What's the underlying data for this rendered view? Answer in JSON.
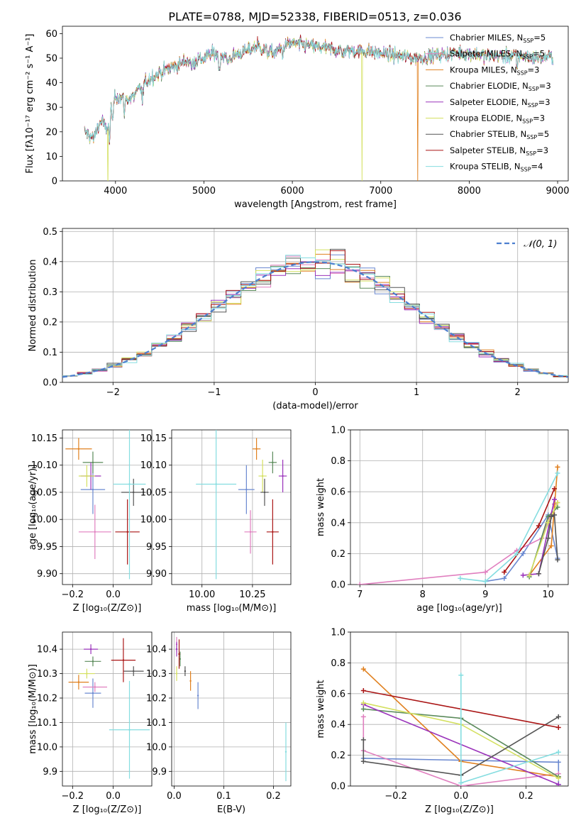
{
  "figure_title": "PLATE=0788, MJD=52338, FIBERID=0513, z=0.036",
  "series_colors": [
    "#6a88d0",
    "#e07fbf",
    "#e0801f",
    "#5a8a5a",
    "#9a33bb",
    "#d4e060",
    "#555555",
    "#aa1515",
    "#85dde0"
  ],
  "legend": [
    {
      "label": "Chabrier MILES, N",
      "sub": "SSP",
      "eq": "=5",
      "color": "#6a88d0"
    },
    {
      "label": "Salpeter MILES, N",
      "sub": "SSP",
      "eq": "=5",
      "color": "#e07fbf"
    },
    {
      "label": "Kroupa MILES, N",
      "sub": "SSP",
      "eq": "=3",
      "color": "#e0801f"
    },
    {
      "label": "Chabrier ELODIE, N",
      "sub": "SSP",
      "eq": "=3",
      "color": "#5a8a5a"
    },
    {
      "label": "Salpeter ELODIE, N",
      "sub": "SSP",
      "eq": "=3",
      "color": "#9a33bb"
    },
    {
      "label": "Kroupa ELODIE, N",
      "sub": "SSP",
      "eq": "=3",
      "color": "#d4e060"
    },
    {
      "label": "Chabrier STELIB, N",
      "sub": "SSP",
      "eq": "=5",
      "color": "#555555"
    },
    {
      "label": "Salpeter STELIB, N",
      "sub": "SSP",
      "eq": "=3",
      "color": "#aa1515"
    },
    {
      "label": "Kroupa STELIB, N",
      "sub": "SSP",
      "eq": "=4",
      "color": "#85dde0"
    }
  ],
  "chart_data": [
    {
      "id": "spectrum",
      "type": "line",
      "xlabel": "wavelength [Angstrom, rest frame]",
      "ylabel": "Flux [fλ10⁻¹⁷ erg cm⁻² s⁻¹ A⁻¹]",
      "xlim": [
        3400,
        9120
      ],
      "ylim": [
        0,
        63
      ],
      "xticks": [
        4000,
        5000,
        6000,
        7000,
        8000,
        9000
      ],
      "yticks": [
        0,
        10,
        20,
        30,
        40,
        50,
        60
      ],
      "grid": false,
      "continuum": {
        "x": [
          3650,
          3700,
          3750,
          3800,
          3850,
          3900,
          3950,
          4000,
          4100,
          4200,
          4300,
          4400,
          4500,
          4600,
          4700,
          4800,
          4900,
          5000,
          5100,
          5200,
          5300,
          5400,
          5500,
          5600,
          5700,
          5800,
          5900,
          6000,
          6200,
          6400,
          6600,
          6800,
          7000,
          7200,
          7400,
          7600,
          7800,
          8000,
          8200,
          8400,
          8600,
          8800,
          8950
        ],
        "y": [
          20,
          19,
          17,
          22,
          25,
          20,
          30,
          35,
          33,
          34,
          39,
          42,
          44,
          46,
          47,
          49,
          49,
          50,
          52,
          51,
          50,
          52,
          53,
          55,
          53,
          52,
          55,
          56,
          55,
          54,
          53,
          53,
          52,
          51,
          50,
          51,
          52,
          52,
          51,
          51,
          51,
          50,
          51
        ]
      },
      "absorption_features": [
        [
          3934,
          12
        ],
        [
          3969,
          10
        ],
        [
          4101,
          5
        ],
        [
          4304,
          8
        ],
        [
          4861,
          4
        ],
        [
          5175,
          8
        ],
        [
          5270,
          3
        ],
        [
          5893,
          4
        ],
        [
          6563,
          3
        ],
        [
          8542,
          6
        ]
      ],
      "dropouts": [
        {
          "series": 5,
          "x": 3915
        },
        {
          "series": 5,
          "x": 6790
        },
        {
          "series": 2,
          "x": 7420
        }
      ]
    },
    {
      "id": "residuals",
      "type": "histogram",
      "xlabel": "(data-model)/error",
      "ylabel": "Normed distribution",
      "xlim": [
        -2.5,
        2.5
      ],
      "ylim": [
        0,
        0.51
      ],
      "xticks": [
        -2,
        -1,
        0,
        1,
        2
      ],
      "yticks": [
        0,
        0.1,
        0.2,
        0.3,
        0.4,
        0.5
      ],
      "grid": true,
      "bins": 34,
      "reference_label": "𝒩(0, 1)",
      "reference_color": "#4c7fcf"
    },
    {
      "id": "age_vs_Z",
      "type": "scatter",
      "xlabel": "Z [log₁₀(Z/Z⊙)]",
      "ylabel": "age  [log₁₀(age/yr)]",
      "xlim": [
        -0.25,
        0.19
      ],
      "ylim": [
        9.88,
        10.165
      ],
      "xticks": [
        -0.2,
        0.0
      ],
      "yticks": [
        9.9,
        9.95,
        10.0,
        10.05,
        10.1,
        10.15
      ],
      "grid": true,
      "points": [
        {
          "c": 0,
          "x": -0.1,
          "y": 10.055,
          "ex": 0.06,
          "ey": 0.045
        },
        {
          "c": 1,
          "x": -0.09,
          "y": 9.977,
          "ex": 0.08,
          "ey": 0.05
        },
        {
          "c": 2,
          "x": -0.17,
          "y": 10.13,
          "ex": 0.065,
          "ey": 0.02
        },
        {
          "c": 3,
          "x": -0.1,
          "y": 10.105,
          "ex": 0.05,
          "ey": 0.02
        },
        {
          "c": 4,
          "x": -0.11,
          "y": 10.08,
          "ex": 0.05,
          "ey": 0.025
        },
        {
          "c": 5,
          "x": -0.13,
          "y": 10.08,
          "ex": 0.04,
          "ey": 0.02
        },
        {
          "c": 6,
          "x": 0.1,
          "y": 10.05,
          "ex": 0.06,
          "ey": 0.025
        },
        {
          "c": 7,
          "x": 0.07,
          "y": 9.977,
          "ex": 0.06,
          "ey": 0.06
        },
        {
          "c": 8,
          "x": 0.08,
          "y": 10.065,
          "ex": 0.08,
          "ey": 0.175
        }
      ]
    },
    {
      "id": "age_vs_mass",
      "type": "scatter",
      "xlabel": "mass [log₁₀(M/M⊙)]",
      "ylabel": "",
      "xlim": [
        9.85,
        10.44
      ],
      "ylim": [
        9.88,
        10.165
      ],
      "xticks": [
        10.0,
        10.25
      ],
      "yticks": [
        9.9,
        9.95,
        10.0,
        10.05,
        10.1,
        10.15
      ],
      "grid": true,
      "points": [
        {
          "c": 0,
          "x": 10.22,
          "y": 10.055,
          "ex": 0.04,
          "ey": 0.045
        },
        {
          "c": 1,
          "x": 10.24,
          "y": 9.977,
          "ex": 0.03,
          "ey": 0.04
        },
        {
          "c": 2,
          "x": 10.27,
          "y": 10.13,
          "ex": 0.02,
          "ey": 0.02
        },
        {
          "c": 3,
          "x": 10.35,
          "y": 10.105,
          "ex": 0.02,
          "ey": 0.02
        },
        {
          "c": 4,
          "x": 10.4,
          "y": 10.08,
          "ex": 0.02,
          "ey": 0.03
        },
        {
          "c": 5,
          "x": 10.3,
          "y": 10.08,
          "ex": 0.02,
          "ey": 0.03
        },
        {
          "c": 6,
          "x": 10.31,
          "y": 10.05,
          "ex": 0.02,
          "ey": 0.025
        },
        {
          "c": 7,
          "x": 10.35,
          "y": 9.977,
          "ex": 0.03,
          "ey": 0.06
        },
        {
          "c": 8,
          "x": 10.07,
          "y": 10.065,
          "ex": 0.1,
          "ey": 0.175
        }
      ]
    },
    {
      "id": "mass_weight_vs_age",
      "type": "line",
      "xlabel": "age  [log₁₀(age/yr)]",
      "ylabel": "mass weight",
      "xlim": [
        6.85,
        10.32
      ],
      "ylim": [
        0,
        1
      ],
      "xticks": [
        7,
        8,
        9,
        10
      ],
      "yticks": [
        0,
        0.2,
        0.4,
        0.6,
        0.8,
        1.0
      ],
      "grid": true,
      "series": [
        {
          "c": 0,
          "x": [
            9.0,
            9.3,
            9.6,
            10.0,
            10.15
          ],
          "y": [
            0.02,
            0.04,
            0.2,
            0.45,
            0.17
          ]
        },
        {
          "c": 1,
          "x": [
            7.0,
            9.0,
            9.5,
            9.9,
            10.1,
            10.15
          ],
          "y": [
            0.0,
            0.08,
            0.22,
            0.3,
            0.52,
            0.53
          ]
        },
        {
          "c": 2,
          "x": [
            9.7,
            10.05,
            10.15
          ],
          "y": [
            0.06,
            0.25,
            0.76
          ]
        },
        {
          "c": 3,
          "x": [
            9.7,
            10.0,
            10.15
          ],
          "y": [
            0.05,
            0.44,
            0.5
          ]
        },
        {
          "c": 4,
          "x": [
            9.6,
            9.85,
            10.1
          ],
          "y": [
            0.06,
            0.07,
            0.55
          ]
        },
        {
          "c": 5,
          "x": [
            9.7,
            10.0,
            10.15
          ],
          "y": [
            0.06,
            0.4,
            0.53
          ]
        },
        {
          "c": 6,
          "x": [
            9.85,
            10.0,
            10.05,
            10.1,
            10.15
          ],
          "y": [
            0.07,
            0.3,
            0.44,
            0.45,
            0.16
          ]
        },
        {
          "c": 7,
          "x": [
            9.3,
            9.85,
            10.1
          ],
          "y": [
            0.08,
            0.38,
            0.62
          ]
        },
        {
          "c": 8,
          "x": [
            8.6,
            9.0,
            9.5,
            10.15
          ],
          "y": [
            0.04,
            0.02,
            0.2,
            0.72
          ]
        }
      ]
    },
    {
      "id": "mass_vs_Z",
      "type": "scatter",
      "xlabel": "Z [log₁₀(Z/Z⊙)]",
      "ylabel": "mass [log₁₀(M/M⊙)]",
      "xlim": [
        -0.25,
        0.19
      ],
      "ylim": [
        9.84,
        10.47
      ],
      "xticks": [
        -0.2,
        0.0
      ],
      "yticks": [
        9.9,
        10.0,
        10.1,
        10.2,
        10.3,
        10.4
      ],
      "grid": true,
      "points": [
        {
          "c": 0,
          "x": -0.1,
          "y": 10.22,
          "ex": 0.04,
          "ey": 0.06
        },
        {
          "c": 1,
          "x": -0.09,
          "y": 10.245,
          "ex": 0.06,
          "ey": 0.02
        },
        {
          "c": 2,
          "x": -0.17,
          "y": 10.265,
          "ex": 0.05,
          "ey": 0.03
        },
        {
          "c": 3,
          "x": -0.1,
          "y": 10.35,
          "ex": 0.04,
          "ey": 0.02
        },
        {
          "c": 4,
          "x": -0.11,
          "y": 10.4,
          "ex": 0.035,
          "ey": 0.02
        },
        {
          "c": 5,
          "x": -0.13,
          "y": 10.3,
          "ex": 0.04,
          "ey": 0.02
        },
        {
          "c": 6,
          "x": 0.1,
          "y": 10.31,
          "ex": 0.05,
          "ey": 0.02
        },
        {
          "c": 7,
          "x": 0.05,
          "y": 10.355,
          "ex": 0.06,
          "ey": 0.09
        },
        {
          "c": 8,
          "x": 0.08,
          "y": 10.07,
          "ex": 0.1,
          "ey": 0.2
        }
      ]
    },
    {
      "id": "mass_vs_ebv",
      "type": "scatter",
      "xlabel": "E(B-V)",
      "ylabel": "",
      "xlim": [
        -0.005,
        0.235
      ],
      "ylim": [
        9.84,
        10.47
      ],
      "xticks": [
        0.0,
        0.1,
        0.2
      ],
      "yticks": [
        9.9,
        10.0,
        10.1,
        10.2,
        10.3,
        10.4
      ],
      "grid": true,
      "points": [
        {
          "c": 0,
          "x": 0.048,
          "y": 10.21,
          "ey": 0.055
        },
        {
          "c": 1,
          "x": 0.005,
          "y": 10.42,
          "ey": 0.03
        },
        {
          "c": 2,
          "x": 0.033,
          "y": 10.27,
          "ey": 0.04
        },
        {
          "c": 3,
          "x": 0.012,
          "y": 10.36,
          "ey": 0.03
        },
        {
          "c": 4,
          "x": 0.005,
          "y": 10.4,
          "ey": 0.03
        },
        {
          "c": 5,
          "x": 0.005,
          "y": 10.3,
          "ey": 0.03
        },
        {
          "c": 6,
          "x": 0.022,
          "y": 10.31,
          "ey": 0.02
        },
        {
          "c": 7,
          "x": 0.01,
          "y": 10.38,
          "ey": 0.06
        },
        {
          "c": 8,
          "x": 0.225,
          "y": 9.98,
          "ey": 0.12
        }
      ]
    },
    {
      "id": "mass_weight_vs_Z",
      "type": "line",
      "xlabel": "Z [log₁₀(Z/Z⊙)]",
      "ylabel": "mass weight",
      "xlim": [
        -0.34,
        0.33
      ],
      "ylim": [
        0,
        1
      ],
      "xticks": [
        -0.2,
        0.0,
        0.2
      ],
      "yticks": [
        0,
        0.2,
        0.4,
        0.6,
        0.8,
        1.0
      ],
      "grid": true,
      "series": [
        {
          "c": 0,
          "x": [
            -0.3,
            0.3,
            0.3
          ],
          "y": [
            0.18,
            0.155,
            0.01
          ]
        },
        {
          "c": 1,
          "x": [
            -0.3,
            -0.3,
            0.0,
            0.3
          ],
          "y": [
            0.45,
            0.23,
            0.0,
            0.08
          ]
        },
        {
          "c": 2,
          "x": [
            -0.3,
            0.0,
            0.3
          ],
          "y": [
            0.76,
            0.16,
            0.06
          ]
        },
        {
          "c": 3,
          "x": [
            -0.3,
            0.0,
            0.3
          ],
          "y": [
            0.5,
            0.44,
            0.06
          ]
        },
        {
          "c": 4,
          "x": [
            -0.3,
            0.3
          ],
          "y": [
            0.53,
            0.01
          ]
        },
        {
          "c": 5,
          "x": [
            -0.3,
            0.0,
            0.3
          ],
          "y": [
            0.54,
            0.4,
            0.05
          ]
        },
        {
          "c": 6,
          "x": [
            -0.3,
            -0.3,
            0.0,
            0.3
          ],
          "y": [
            0.3,
            0.16,
            0.07,
            0.45
          ]
        },
        {
          "c": 7,
          "x": [
            -0.3,
            0.3
          ],
          "y": [
            0.62,
            0.38
          ]
        },
        {
          "c": 8,
          "x": [
            0.0,
            0.0,
            0.3
          ],
          "y": [
            0.72,
            0.02,
            0.22
          ]
        }
      ]
    }
  ]
}
